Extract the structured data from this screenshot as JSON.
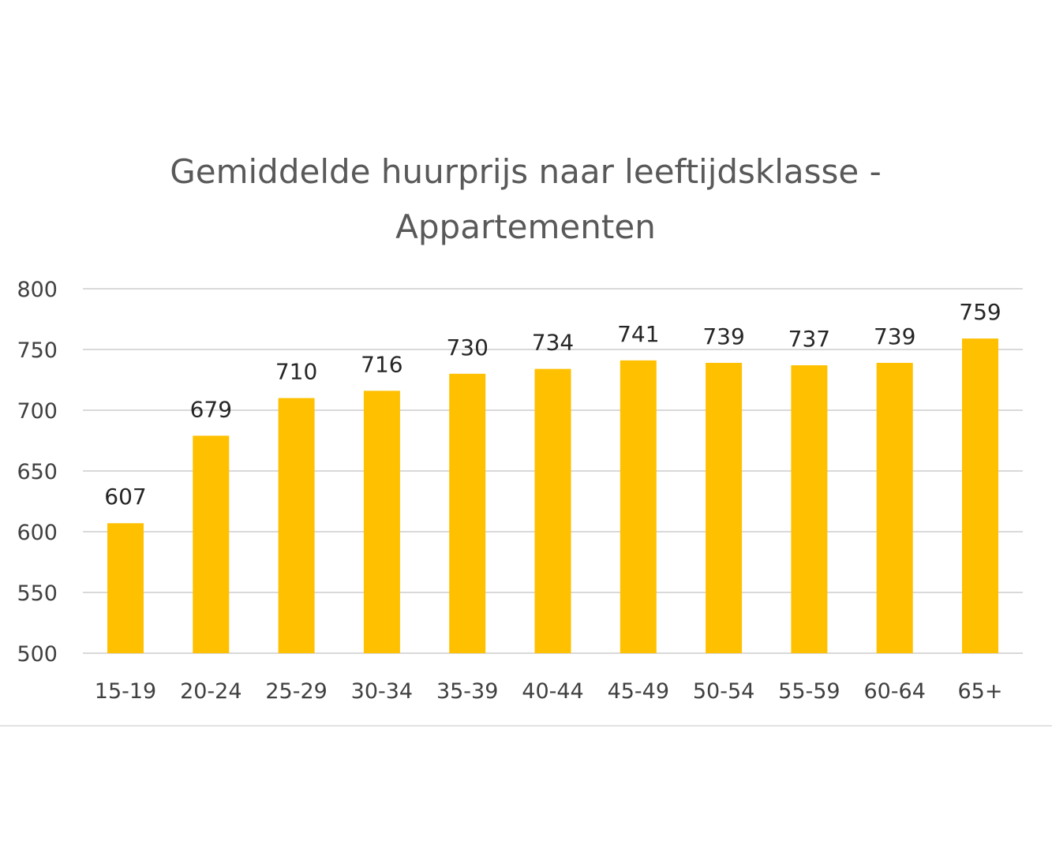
{
  "chart_data": {
    "type": "bar",
    "title_lines": [
      "Gemiddelde huurprijs naar leeftijdsklasse -",
      "Appartementen"
    ],
    "categories": [
      "15-19",
      "20-24",
      "25-29",
      "30-34",
      "35-39",
      "40-44",
      "45-49",
      "50-54",
      "55-59",
      "60-64",
      "65+"
    ],
    "values": [
      607,
      679,
      710,
      716,
      730,
      734,
      741,
      739,
      737,
      739,
      759
    ],
    "ylim": [
      500,
      800
    ],
    "yticks": [
      500,
      550,
      600,
      650,
      700,
      750,
      800
    ],
    "grid": true,
    "data_labels": true,
    "colors": {
      "bar": "#FFC000",
      "grid": "#D9D9D9",
      "frame": "#D9D9D9"
    }
  }
}
